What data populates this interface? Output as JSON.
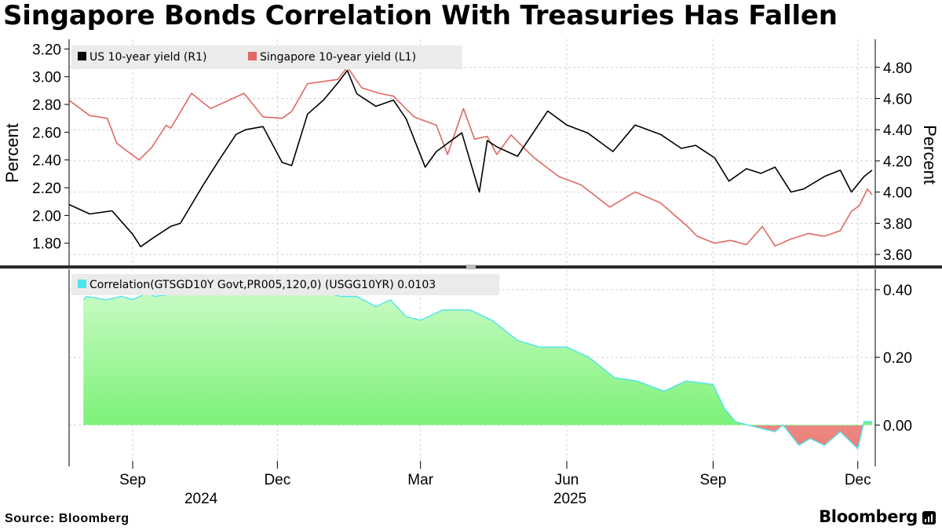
{
  "title": "Singapore Bonds Correlation With Treasuries Has Fallen",
  "source": "Source: Bloomberg",
  "brand": "Bloomberg",
  "chart_data": [
    {
      "type": "line",
      "panel": "yields",
      "left_axis": {
        "label": "Percent",
        "range": [
          1.64,
          3.27
        ],
        "ticks": [
          "1.80",
          "2.00",
          "2.20",
          "2.40",
          "2.60",
          "2.80",
          "3.00",
          "3.20"
        ]
      },
      "right_axis": {
        "label": "Percent",
        "range": [
          3.53,
          4.98
        ],
        "ticks": [
          "3.60",
          "3.80",
          "4.00",
          "4.20",
          "4.40",
          "4.60",
          "4.80"
        ]
      },
      "grid": true,
      "legend_placement": "top-left",
      "series": [
        {
          "name": "US 10-year yield (R1)",
          "axis": "right",
          "color": "#000000",
          "x": [
            "2024-07-23",
            "2024-08-05",
            "2024-08-19",
            "2024-09-01",
            "2024-09-06",
            "2024-09-13",
            "2024-09-25",
            "2024-10-01",
            "2024-10-15",
            "2024-10-25",
            "2024-11-05",
            "2024-11-11",
            "2024-11-22",
            "2024-12-04",
            "2024-12-10",
            "2024-12-20",
            "2024-12-30",
            "2025-01-08",
            "2025-01-14",
            "2025-01-20",
            "2025-02-01",
            "2025-02-12",
            "2025-02-20",
            "2025-03-04",
            "2025-03-11",
            "2025-03-27",
            "2025-04-07",
            "2025-04-12",
            "2025-04-18",
            "2025-05-01",
            "2025-05-20",
            "2025-06-01",
            "2025-06-14",
            "2025-06-30",
            "2025-07-14",
            "2025-07-30",
            "2025-08-12",
            "2025-08-21",
            "2025-09-02",
            "2025-09-11",
            "2025-09-22",
            "2025-10-01",
            "2025-10-10",
            "2025-10-20",
            "2025-10-28",
            "2025-11-10",
            "2025-11-20",
            "2025-11-27",
            "2025-12-05",
            "2025-12-10"
          ],
          "values": [
            3.92,
            3.86,
            3.88,
            3.73,
            3.65,
            3.7,
            3.78,
            3.8,
            4.04,
            4.2,
            4.37,
            4.4,
            4.42,
            4.19,
            4.17,
            4.5,
            4.59,
            4.7,
            4.78,
            4.63,
            4.55,
            4.59,
            4.47,
            4.16,
            4.26,
            4.38,
            4.0,
            4.33,
            4.29,
            4.23,
            4.52,
            4.43,
            4.38,
            4.26,
            4.43,
            4.37,
            4.28,
            4.3,
            4.22,
            4.07,
            4.15,
            4.12,
            4.16,
            4.0,
            4.02,
            4.1,
            4.14,
            4.0,
            4.1,
            4.14
          ]
        },
        {
          "name": "Singapore 10-year yield (L1)",
          "axis": "left",
          "color": "#e06862",
          "x": [
            "2024-07-23",
            "2024-08-05",
            "2024-08-16",
            "2024-08-22",
            "2024-09-05",
            "2024-09-13",
            "2024-09-22",
            "2024-09-25",
            "2024-10-08",
            "2024-10-20",
            "2024-11-10",
            "2024-11-22",
            "2024-12-04",
            "2024-12-10",
            "2024-12-20",
            "2025-01-08",
            "2025-01-14",
            "2025-01-23",
            "2025-02-03",
            "2025-02-12",
            "2025-02-25",
            "2025-03-11",
            "2025-03-18",
            "2025-03-28",
            "2025-04-04",
            "2025-04-12",
            "2025-04-18",
            "2025-04-27",
            "2025-05-11",
            "2025-05-27",
            "2025-06-10",
            "2025-06-28",
            "2025-07-14",
            "2025-07-30",
            "2025-08-16",
            "2025-08-22",
            "2025-09-02",
            "2025-09-12",
            "2025-09-22",
            "2025-10-02",
            "2025-10-10",
            "2025-10-20",
            "2025-10-31",
            "2025-11-10",
            "2025-11-20",
            "2025-11-27",
            "2025-12-02",
            "2025-12-07",
            "2025-12-10"
          ],
          "values": [
            2.83,
            2.72,
            2.7,
            2.52,
            2.4,
            2.49,
            2.65,
            2.63,
            2.88,
            2.77,
            2.88,
            2.71,
            2.7,
            2.75,
            2.95,
            2.98,
            3.07,
            2.92,
            2.88,
            2.86,
            2.71,
            2.65,
            2.44,
            2.77,
            2.55,
            2.57,
            2.44,
            2.58,
            2.42,
            2.28,
            2.22,
            2.06,
            2.17,
            2.09,
            1.92,
            1.85,
            1.8,
            1.82,
            1.79,
            1.92,
            1.78,
            1.83,
            1.87,
            1.85,
            1.89,
            2.03,
            2.07,
            2.19,
            2.15
          ]
        }
      ]
    },
    {
      "type": "area",
      "panel": "correlation",
      "legend": "Correlation(GTSGD10Y Govt,PR005,120,0) (USGG10YR) 0.0103",
      "right_axis": {
        "range": [
          -0.12,
          0.46
        ],
        "ticks": [
          "0.00",
          "0.20",
          "0.40"
        ]
      },
      "grid": true,
      "line_color": "#4fe3f0",
      "positive_fill": [
        "#c9fbc5",
        "#6ff06a"
      ],
      "negative_fill": [
        "#f5c8c4",
        "#ec7e77"
      ],
      "x": [
        "2024-08-01",
        "2024-08-03",
        "2024-08-15",
        "2024-08-25",
        "2024-09-01",
        "2024-09-10",
        "2024-09-15",
        "2024-10-01",
        "2024-10-15",
        "2024-11-01",
        "2024-11-15",
        "2024-12-01",
        "2024-12-15",
        "2025-01-01",
        "2025-01-10",
        "2025-01-20",
        "2025-02-01",
        "2025-02-10",
        "2025-02-20",
        "2025-03-01",
        "2025-03-15",
        "2025-04-01",
        "2025-04-15",
        "2025-05-01",
        "2025-05-15",
        "2025-06-01",
        "2025-06-15",
        "2025-07-01",
        "2025-07-15",
        "2025-08-01",
        "2025-08-15",
        "2025-09-01",
        "2025-09-08",
        "2025-09-15",
        "2025-10-01",
        "2025-10-10",
        "2025-10-15",
        "2025-10-25",
        "2025-11-01",
        "2025-11-10",
        "2025-11-20",
        "2025-12-01",
        "2025-12-05",
        "2025-12-10"
      ],
      "values": [
        0.37,
        0.38,
        0.37,
        0.38,
        0.37,
        0.39,
        0.38,
        0.39,
        0.39,
        0.39,
        0.4,
        0.39,
        0.4,
        0.39,
        0.38,
        0.38,
        0.35,
        0.37,
        0.32,
        0.31,
        0.34,
        0.34,
        0.31,
        0.25,
        0.23,
        0.23,
        0.2,
        0.14,
        0.13,
        0.1,
        0.13,
        0.12,
        0.05,
        0.01,
        -0.01,
        -0.02,
        0.0,
        -0.06,
        -0.04,
        -0.06,
        -0.02,
        -0.07,
        0.01,
        0.01
      ]
    }
  ],
  "x_axis": {
    "months": [
      {
        "label": "Sep",
        "date": "2024-09-01"
      },
      {
        "label": "Dec",
        "date": "2024-12-01"
      },
      {
        "label": "Mar",
        "date": "2025-03-01"
      },
      {
        "label": "Jun",
        "date": "2025-06-01"
      },
      {
        "label": "Sep",
        "date": "2025-09-01"
      },
      {
        "label": "Dec",
        "date": "2025-12-01"
      }
    ],
    "years": [
      {
        "label": "2024",
        "date": "2024-10-14"
      },
      {
        "label": "2025",
        "date": "2025-06-03"
      }
    ]
  }
}
